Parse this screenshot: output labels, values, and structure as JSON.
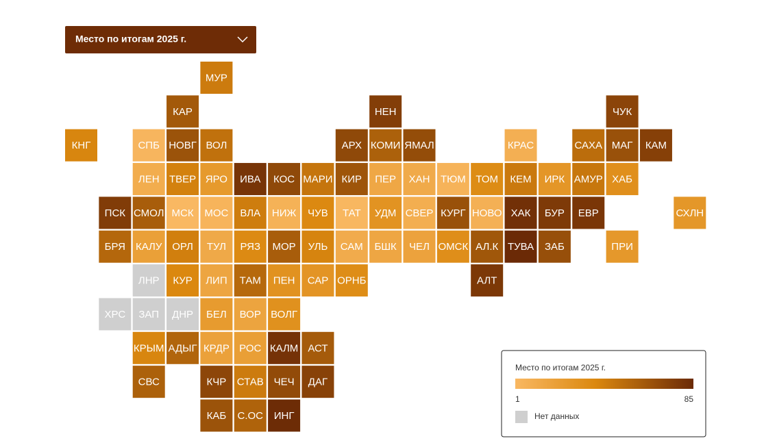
{
  "dropdown": {
    "label": "Место по итогам 2025 г."
  },
  "legend": {
    "title": "Место по итогам 2025 г.",
    "min": 1,
    "max": 85,
    "colors": [
      "#f9b862",
      "#db880f",
      "#6b2a06"
    ],
    "no_data": "Нет данных",
    "no_data_color": "#cfcfcf"
  },
  "regions": [
    {
      "label": "МУР",
      "rank": 45
    },
    {
      "label": "КАР",
      "rank": 62
    },
    {
      "label": "НЕН",
      "rank": 75
    },
    {
      "label": "ЧУК",
      "rank": 72
    },
    {
      "label": "КНГ",
      "rank": 40
    },
    {
      "label": "СПБ",
      "rank": 3
    },
    {
      "label": "НОВГ",
      "rank": 65
    },
    {
      "label": "ВОЛ",
      "rank": 50
    },
    {
      "label": "АРХ",
      "rank": 70
    },
    {
      "label": "КОМИ",
      "rank": 58
    },
    {
      "label": "ЯМАЛ",
      "rank": 68
    },
    {
      "label": "КРАС",
      "rank": 8
    },
    {
      "label": "САХА",
      "rank": 52
    },
    {
      "label": "МАГ",
      "rank": 66
    },
    {
      "label": "КАМ",
      "rank": 74
    },
    {
      "label": "ЛЕН",
      "rank": 10
    },
    {
      "label": "ТВЕР",
      "rank": 42
    },
    {
      "label": "ЯРО",
      "rank": 25
    },
    {
      "label": "ИВА",
      "rank": 80
    },
    {
      "label": "КОС",
      "rank": 70
    },
    {
      "label": "МАРИ",
      "rank": 48
    },
    {
      "label": "КИР",
      "rank": 64
    },
    {
      "label": "ПЕР",
      "rank": 14
    },
    {
      "label": "ХАН",
      "rank": 12
    },
    {
      "label": "ТЮМ",
      "rank": 5
    },
    {
      "label": "ТОМ",
      "rank": 36
    },
    {
      "label": "КЕМ",
      "rank": 46
    },
    {
      "label": "ИРК",
      "rank": 28
    },
    {
      "label": "АМУР",
      "rank": 47
    },
    {
      "label": "ХАБ",
      "rank": 33
    },
    {
      "label": "ПСК",
      "rank": 76
    },
    {
      "label": "СМОЛ",
      "rank": 60
    },
    {
      "label": "МСК",
      "rank": 1
    },
    {
      "label": "МОС",
      "rank": 4
    },
    {
      "label": "ВЛА",
      "rank": 44
    },
    {
      "label": "НИЖ",
      "rank": 6
    },
    {
      "label": "ЧУВ",
      "rank": 38
    },
    {
      "label": "ТАТ",
      "rank": 2
    },
    {
      "label": "УДМ",
      "rank": 30
    },
    {
      "label": "СВЕР",
      "rank": 9
    },
    {
      "label": "КУРГ",
      "rank": 66
    },
    {
      "label": "НОВО",
      "rank": 7
    },
    {
      "label": "ХАК",
      "rank": 82
    },
    {
      "label": "БУР",
      "rank": 77
    },
    {
      "label": "ЕВР",
      "rank": 79
    },
    {
      "label": "СХЛН",
      "rank": 27
    },
    {
      "label": "БРЯ",
      "rank": 55
    },
    {
      "label": "КАЛУ",
      "rank": 20
    },
    {
      "label": "ОРЛ",
      "rank": 43
    },
    {
      "label": "ТУЛ",
      "rank": 13
    },
    {
      "label": "РЯЗ",
      "rank": 37
    },
    {
      "label": "МОР",
      "rank": 60
    },
    {
      "label": "УЛЬ",
      "rank": 41
    },
    {
      "label": "САМ",
      "rank": 11
    },
    {
      "label": "БШК",
      "rank": 15
    },
    {
      "label": "ЧЕЛ",
      "rank": 18
    },
    {
      "label": "ОМСК",
      "rank": 34
    },
    {
      "label": "АЛ.К",
      "rank": 63
    },
    {
      "label": "ТУВА",
      "rank": 85
    },
    {
      "label": "ЗАБ",
      "rank": 67
    },
    {
      "label": "ПРИ",
      "rank": 26
    },
    {
      "label": "ЛНР",
      "rank": null
    },
    {
      "label": "КУР",
      "rank": 39
    },
    {
      "label": "ЛИП",
      "rank": 16
    },
    {
      "label": "ТАМ",
      "rank": 54
    },
    {
      "label": "ПЕН",
      "rank": 31
    },
    {
      "label": "САР",
      "rank": 29
    },
    {
      "label": "ОРНБ",
      "rank": 35
    },
    {
      "label": "АЛТ",
      "rank": 78
    },
    {
      "label": "ХРС",
      "rank": null
    },
    {
      "label": "ЗАП",
      "rank": null
    },
    {
      "label": "ДНР",
      "rank": null
    },
    {
      "label": "БЕЛ",
      "rank": 24
    },
    {
      "label": "ВОР",
      "rank": 17
    },
    {
      "label": "ВОЛГ",
      "rank": 32
    },
    {
      "label": "КРЫМ",
      "rank": 40
    },
    {
      "label": "АДЫГ",
      "rank": 56
    },
    {
      "label": "КРДР",
      "rank": 19
    },
    {
      "label": "РОС",
      "rank": 21
    },
    {
      "label": "КАЛМ",
      "rank": 81
    },
    {
      "label": "АСТ",
      "rank": 61
    },
    {
      "label": "СВС",
      "rank": 58
    },
    {
      "label": "КЧР",
      "rank": 71
    },
    {
      "label": "СТАВ",
      "rank": 45
    },
    {
      "label": "ЧЕЧ",
      "rank": 69
    },
    {
      "label": "ДАГ",
      "rank": 73
    },
    {
      "label": "КАБ",
      "rank": 65
    },
    {
      "label": "С.ОС",
      "rank": 57
    },
    {
      "label": "ИНГ",
      "rank": 84
    }
  ]
}
